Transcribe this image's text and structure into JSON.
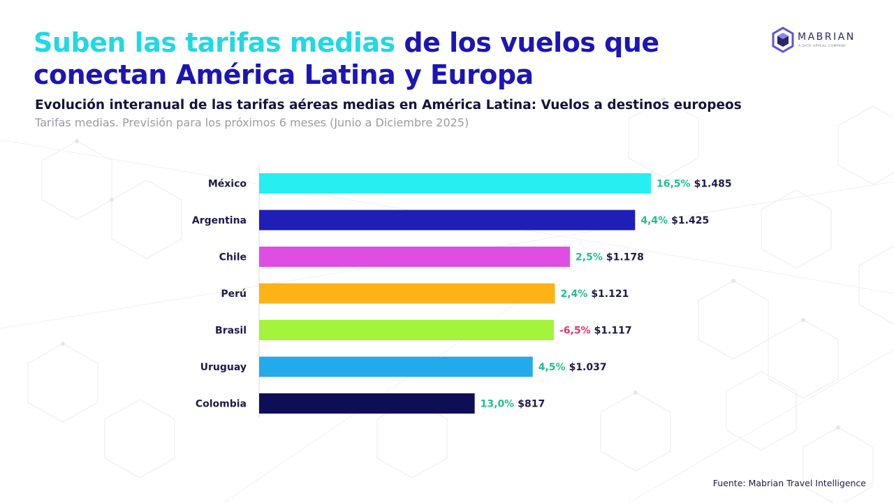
{
  "header": {
    "title_highlight": "Suben las tarifas medias",
    "title_rest_line1": "de los vuelos que",
    "title_line2": "conectan América Latina y Europa",
    "subtitle": "Evolución interanual de las tarifas aéreas medias en América Latina: Vuelos a destinos europeos",
    "subsubtitle": "Tarifas medias. Previsión para los próximos 6 meses (Junio a Diciembre 2025)"
  },
  "logo": {
    "name": "MABRIAN",
    "tagline": "A DATA APPEAL COMPANY",
    "icon": "hexagon-logo-icon"
  },
  "footer": {
    "source": "Fuente: Mabrian Travel Intelligence"
  },
  "colors": {
    "title_primary": "#1b16b4",
    "title_highlight": "#22d8e2",
    "positive_change": "#1fbf8f",
    "negative_change": "#e8336b"
  },
  "chart_data": {
    "type": "bar",
    "orientation": "horizontal",
    "categories": [
      "México",
      "Argentina",
      "Chile",
      "Perú",
      "Brasil",
      "Uruguay",
      "Colombia"
    ],
    "values": [
      1485,
      1425,
      1178,
      1121,
      1117,
      1037,
      817
    ],
    "value_labels": [
      "$1.485",
      "$1.425",
      "$1.178",
      "$1.121",
      "$1.117",
      "$1.037",
      "$817"
    ],
    "yoy_change_pct": [
      16.5,
      4.4,
      2.5,
      2.4,
      -6.5,
      4.5,
      13.0
    ],
    "yoy_change_labels": [
      "16,5%",
      "4,4%",
      "2,5%",
      "2,4%",
      "-6,5%",
      "4,5%",
      "13,0%"
    ],
    "bar_colors": [
      "#27eef0",
      "#1e1fb7",
      "#de4ee3",
      "#fdb316",
      "#a4f43c",
      "#24a9eb",
      "#0d0f56"
    ],
    "xlim": [
      0,
      1485
    ],
    "grid": false,
    "legend": "none",
    "xlabel": "",
    "ylabel": ""
  }
}
